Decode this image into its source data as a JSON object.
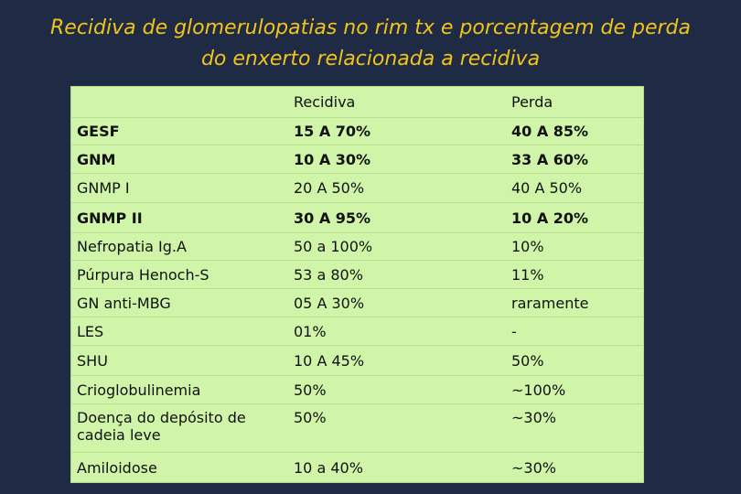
{
  "title": "Recidiva de glomerulopatias no rim tx e porcentagem de perda do enxerto relacionada a recidiva",
  "headers": [
    "",
    "Recidiva",
    "Perda"
  ],
  "rows": [
    {
      "disease": "GESF",
      "recidiva": "15 A 70%",
      "perda": "40 A 85%"
    },
    {
      "disease": "GNM",
      "recidiva": "10 A 30%",
      "perda": "33 A 60%"
    },
    {
      "disease": "GNMP I",
      "recidiva": "20 A 50%",
      "perda": "40 A 50%"
    },
    {
      "disease": "GNMP II",
      "recidiva": "30 A 95%",
      "perda": "10 A 20%"
    },
    {
      "disease": "Nefropatia Ig.A",
      "recidiva": "50 a 100%",
      "perda": "10%"
    },
    {
      "disease": "Púrpura Henoch-S",
      "recidiva": "53 a 80%",
      "perda": "11%"
    },
    {
      "disease": "GN anti-MBG",
      "recidiva": "05 A 30%",
      "perda": "raramente"
    },
    {
      "disease": "LES",
      "recidiva": "01%",
      "perda": "-"
    },
    {
      "disease": "SHU",
      "recidiva": "10 A 45%",
      "perda": "50%"
    },
    {
      "disease": "Crioglobulinemia",
      "recidiva": "50%",
      "perda": "~100%"
    },
    {
      "disease": "Doença do depósito de cadeia leve",
      "recidiva": "50%",
      "perda": "~30%"
    },
    {
      "disease": "Amiloidose",
      "recidiva": "10 a 40%",
      "perda": "~30%"
    }
  ]
}
